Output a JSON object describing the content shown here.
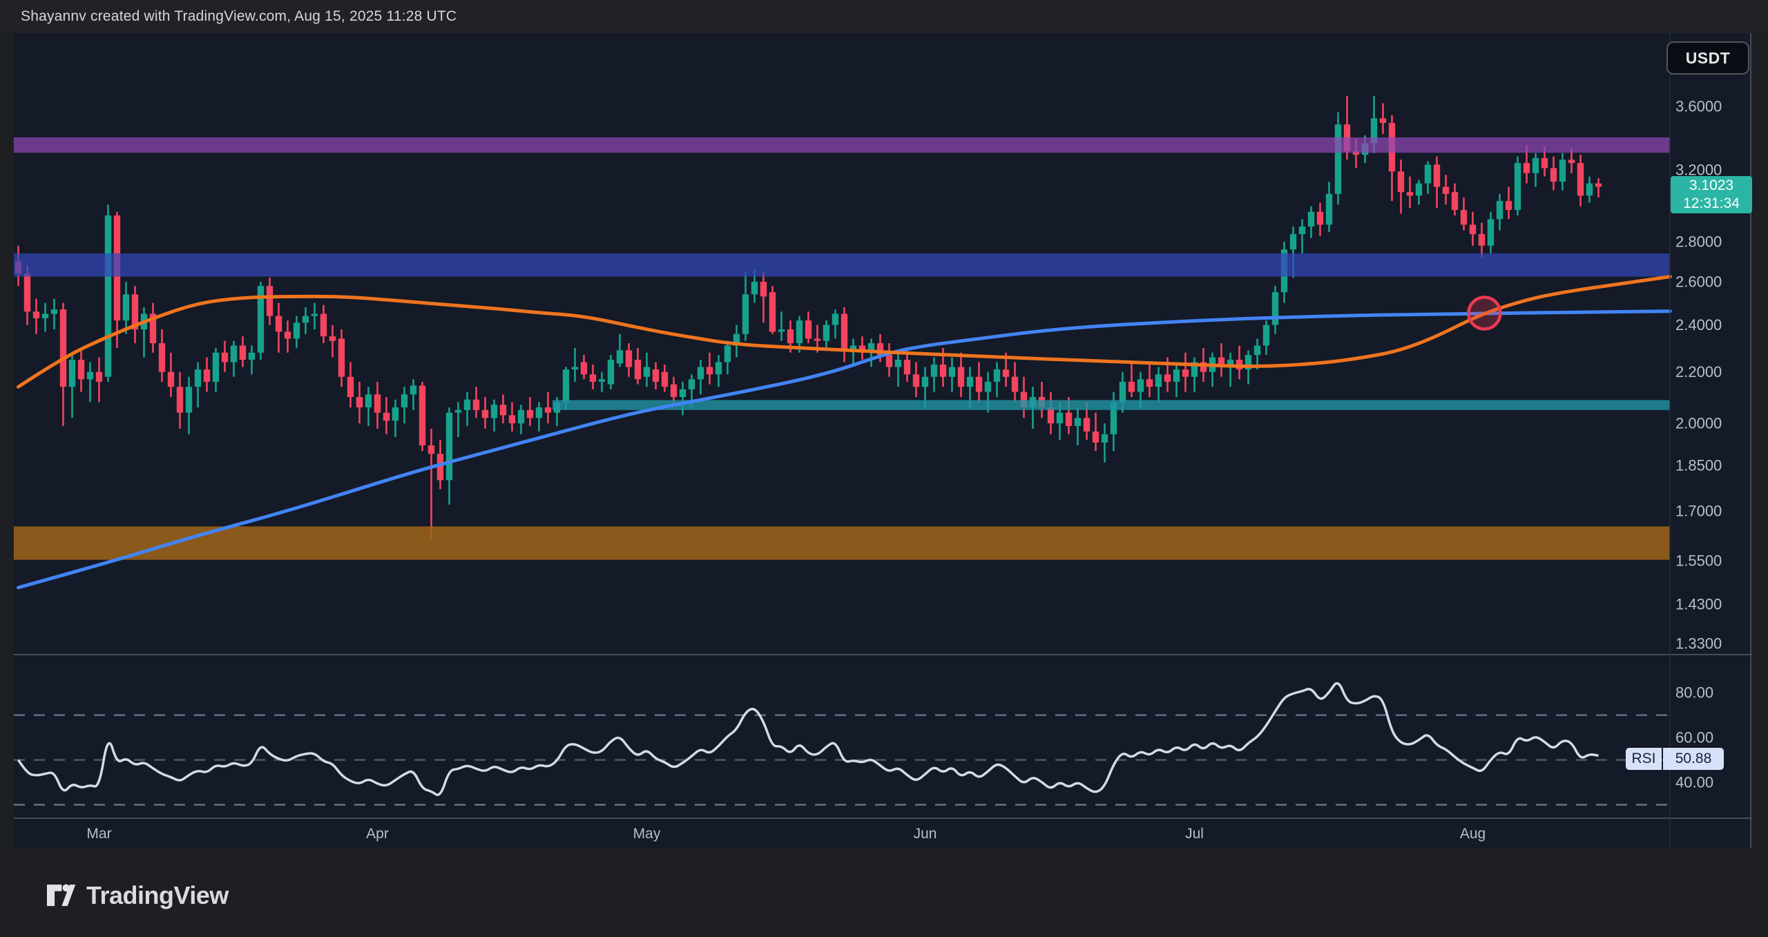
{
  "meta": {
    "attribution": "Shayannv created with TradingView.com, Aug 15, 2025 11:28 UTC"
  },
  "header": {
    "symbol_button": "USDT"
  },
  "watermark": {
    "brand": "TradingView"
  },
  "price_scale": {
    "current": {
      "price": "3.1023",
      "countdown": "12:31:34"
    }
  },
  "rsi": {
    "label": "RSI",
    "value": "50.88"
  },
  "colors": {
    "outer_bg": "#1e1f23",
    "topbar_bg": "#212226",
    "topbar_text": "#d5d7db",
    "chart_bg": "#141a27",
    "up": "#17a28c",
    "down": "#f4445f",
    "ma_fast": "#f0741f",
    "ma_slow": "#4284f5",
    "rsi_line": "#d2dbe8",
    "rsi_level": "#6b7284",
    "rsi_mid_level": "#525a6c",
    "tick_text": "#b8bfcc",
    "separator": "#464c59",
    "plot_border": "#272e3c",
    "price_badge_bg": "#2bb5a4",
    "rsi_badge_bg": "#d7e2f8",
    "rsi_badge_text": "#15223c",
    "usdt_border": "#53565e",
    "usdt_text": "#e4e6ea",
    "logo_color": "#d9dbdf",
    "zone_purple": "rgba(142,71,180,0.72)",
    "zone_blue": "rgba(51,70,186,0.72)",
    "zone_teal": "rgba(33,149,164,0.8)",
    "zone_brown": "rgba(159,101,27,0.85)",
    "annotation_red": "#ea3b52",
    "annotation_red_fill": "rgba(234,59,82,0.28)"
  },
  "chart_data": {
    "type": "candlestick",
    "symbol_quote": "USDT",
    "timeframe": "daily",
    "start_date": "2025-02-20",
    "end_date": "2025-08-15",
    "last_price": 3.1023,
    "y_scale": {
      "type": "log",
      "note": "price p maps to y = A - K*ln(p)"
    },
    "price_ticks": [
      {
        "v": 3.6,
        "label": "3.6000"
      },
      {
        "v": 3.2,
        "label": "3.2000"
      },
      {
        "v": 2.8,
        "label": "2.8000"
      },
      {
        "v": 2.6,
        "label": "2.6000"
      },
      {
        "v": 2.4,
        "label": "2.4000"
      },
      {
        "v": 2.2,
        "label": "2.2000"
      },
      {
        "v": 2.0,
        "label": "2.0000"
      },
      {
        "v": 1.85,
        "label": "1.8500"
      },
      {
        "v": 1.7,
        "label": "1.7000"
      },
      {
        "v": 1.55,
        "label": "1.5500"
      },
      {
        "v": 1.43,
        "label": "1.4300"
      },
      {
        "v": 1.33,
        "label": "1.3300"
      }
    ],
    "time_axis": [
      {
        "label": "Mar",
        "index": 9
      },
      {
        "label": "Apr",
        "index": 40
      },
      {
        "label": "May",
        "index": 70
      },
      {
        "label": "Jun",
        "index": 101
      },
      {
        "label": "Jul",
        "index": 131
      },
      {
        "label": "Aug",
        "index": 162
      }
    ],
    "candles": [
      [
        2.7,
        2.78,
        2.58,
        2.64
      ],
      [
        2.64,
        2.68,
        2.4,
        2.46
      ],
      [
        2.46,
        2.52,
        2.36,
        2.43
      ],
      [
        2.43,
        2.5,
        2.37,
        2.45
      ],
      [
        2.45,
        2.52,
        2.38,
        2.47
      ],
      [
        2.47,
        2.5,
        1.99,
        2.14
      ],
      [
        2.14,
        2.28,
        2.02,
        2.25
      ],
      [
        2.25,
        2.3,
        2.12,
        2.17
      ],
      [
        2.17,
        2.24,
        2.08,
        2.2
      ],
      [
        2.2,
        2.26,
        2.08,
        2.16
      ],
      [
        2.18,
        3.0,
        2.16,
        2.94
      ],
      [
        2.94,
        2.96,
        2.3,
        2.42
      ],
      [
        2.42,
        2.6,
        2.36,
        2.54
      ],
      [
        2.54,
        2.58,
        2.32,
        2.38
      ],
      [
        2.38,
        2.48,
        2.26,
        2.45
      ],
      [
        2.45,
        2.5,
        2.28,
        2.32
      ],
      [
        2.32,
        2.38,
        2.16,
        2.2
      ],
      [
        2.2,
        2.28,
        2.1,
        2.14
      ],
      [
        2.14,
        2.2,
        1.98,
        2.04
      ],
      [
        2.04,
        2.18,
        1.96,
        2.14
      ],
      [
        2.14,
        2.24,
        2.06,
        2.21
      ],
      [
        2.21,
        2.26,
        2.12,
        2.16
      ],
      [
        2.16,
        2.3,
        2.12,
        2.28
      ],
      [
        2.28,
        2.33,
        2.2,
        2.24
      ],
      [
        2.24,
        2.33,
        2.18,
        2.31
      ],
      [
        2.31,
        2.35,
        2.22,
        2.25
      ],
      [
        2.25,
        2.31,
        2.19,
        2.28
      ],
      [
        2.28,
        2.6,
        2.25,
        2.58
      ],
      [
        2.58,
        2.62,
        2.4,
        2.44
      ],
      [
        2.44,
        2.5,
        2.28,
        2.37
      ],
      [
        2.37,
        2.42,
        2.28,
        2.34
      ],
      [
        2.34,
        2.44,
        2.3,
        2.41
      ],
      [
        2.41,
        2.48,
        2.36,
        2.44
      ],
      [
        2.44,
        2.5,
        2.38,
        2.45
      ],
      [
        2.45,
        2.49,
        2.32,
        2.35
      ],
      [
        2.35,
        2.4,
        2.26,
        2.33
      ],
      [
        2.34,
        2.38,
        2.14,
        2.18
      ],
      [
        2.18,
        2.24,
        2.06,
        2.1
      ],
      [
        2.1,
        2.16,
        2.0,
        2.06
      ],
      [
        2.06,
        2.14,
        1.99,
        2.11
      ],
      [
        2.11,
        2.16,
        1.98,
        2.04
      ],
      [
        2.04,
        2.1,
        1.96,
        2.01
      ],
      [
        2.01,
        2.09,
        1.95,
        2.06
      ],
      [
        2.06,
        2.14,
        2.0,
        2.11
      ],
      [
        2.11,
        2.17,
        2.05,
        2.145
      ],
      [
        2.145,
        2.16,
        1.9,
        1.92
      ],
      [
        1.92,
        1.98,
        1.61,
        1.89
      ],
      [
        1.89,
        1.94,
        1.77,
        1.8
      ],
      [
        1.8,
        2.06,
        1.72,
        2.04
      ],
      [
        2.04,
        2.08,
        1.95,
        2.05
      ],
      [
        2.05,
        2.12,
        1.99,
        2.09
      ],
      [
        2.09,
        2.14,
        2.02,
        2.05
      ],
      [
        2.05,
        2.1,
        1.98,
        2.02
      ],
      [
        2.02,
        2.09,
        1.97,
        2.07
      ],
      [
        2.07,
        2.11,
        2.0,
        2.03
      ],
      [
        2.03,
        2.08,
        1.97,
        2.0
      ],
      [
        2.0,
        2.07,
        1.96,
        2.05
      ],
      [
        2.05,
        2.1,
        1.99,
        2.02
      ],
      [
        2.02,
        2.08,
        1.97,
        2.06
      ],
      [
        2.06,
        2.12,
        2.0,
        2.04
      ],
      [
        2.04,
        2.1,
        1.99,
        2.08
      ],
      [
        2.08,
        2.22,
        2.05,
        2.21
      ],
      [
        2.21,
        2.3,
        2.16,
        2.22
      ],
      [
        2.24,
        2.27,
        2.17,
        2.19
      ],
      [
        2.19,
        2.23,
        2.13,
        2.16
      ],
      [
        2.16,
        2.2,
        2.12,
        2.17
      ],
      [
        2.15,
        2.27,
        2.13,
        2.25
      ],
      [
        2.235,
        2.36,
        2.22,
        2.29
      ],
      [
        2.29,
        2.32,
        2.18,
        2.22
      ],
      [
        2.25,
        2.3,
        2.15,
        2.17
      ],
      [
        2.18,
        2.28,
        2.14,
        2.22
      ],
      [
        2.21,
        2.24,
        2.13,
        2.16
      ],
      [
        2.2,
        2.23,
        2.12,
        2.14
      ],
      [
        2.15,
        2.18,
        2.07,
        2.1
      ],
      [
        2.1,
        2.16,
        2.03,
        2.13
      ],
      [
        2.13,
        2.19,
        2.06,
        2.17
      ],
      [
        2.17,
        2.25,
        2.11,
        2.22
      ],
      [
        2.22,
        2.28,
        2.15,
        2.19
      ],
      [
        2.19,
        2.27,
        2.14,
        2.24
      ],
      [
        2.24,
        2.33,
        2.19,
        2.31
      ],
      [
        2.31,
        2.4,
        2.26,
        2.36
      ],
      [
        2.36,
        2.65,
        2.33,
        2.54
      ],
      [
        2.54,
        2.66,
        2.5,
        2.6
      ],
      [
        2.6,
        2.645,
        2.41,
        2.53
      ],
      [
        2.55,
        2.58,
        2.36,
        2.37
      ],
      [
        2.37,
        2.46,
        2.33,
        2.38
      ],
      [
        2.38,
        2.42,
        2.28,
        2.32
      ],
      [
        2.32,
        2.44,
        2.28,
        2.42
      ],
      [
        2.42,
        2.46,
        2.32,
        2.34
      ],
      [
        2.34,
        2.4,
        2.28,
        2.33
      ],
      [
        2.33,
        2.42,
        2.29,
        2.4
      ],
      [
        2.4,
        2.47,
        2.34,
        2.45
      ],
      [
        2.45,
        2.48,
        2.24,
        2.29
      ],
      [
        2.29,
        2.34,
        2.23,
        2.31
      ],
      [
        2.31,
        2.35,
        2.25,
        2.29
      ],
      [
        2.29,
        2.34,
        2.22,
        2.32
      ],
      [
        2.32,
        2.36,
        2.24,
        2.27
      ],
      [
        2.27,
        2.32,
        2.18,
        2.22
      ],
      [
        2.22,
        2.28,
        2.14,
        2.25
      ],
      [
        2.25,
        2.3,
        2.16,
        2.19
      ],
      [
        2.19,
        2.24,
        2.1,
        2.14
      ],
      [
        2.14,
        2.22,
        2.06,
        2.18
      ],
      [
        2.18,
        2.26,
        2.12,
        2.23
      ],
      [
        2.23,
        2.3,
        2.14,
        2.18
      ],
      [
        2.18,
        2.26,
        2.12,
        2.22
      ],
      [
        2.22,
        2.28,
        2.1,
        2.14
      ],
      [
        2.14,
        2.22,
        2.06,
        2.18
      ],
      [
        2.18,
        2.24,
        2.08,
        2.12
      ],
      [
        2.12,
        2.2,
        2.04,
        2.16
      ],
      [
        2.16,
        2.24,
        2.1,
        2.21
      ],
      [
        2.21,
        2.28,
        2.14,
        2.18
      ],
      [
        2.18,
        2.24,
        2.08,
        2.12
      ],
      [
        2.12,
        2.18,
        2.02,
        2.06
      ],
      [
        2.06,
        2.14,
        1.98,
        2.1
      ],
      [
        2.1,
        2.16,
        2.02,
        2.06
      ],
      [
        2.06,
        2.12,
        1.96,
        2.0
      ],
      [
        2.0,
        2.08,
        1.94,
        2.04
      ],
      [
        2.04,
        2.1,
        1.96,
        1.99
      ],
      [
        1.99,
        2.06,
        1.92,
        2.02
      ],
      [
        2.02,
        2.08,
        1.94,
        1.97
      ],
      [
        1.97,
        2.04,
        1.9,
        1.93
      ],
      [
        1.93,
        2.0,
        1.86,
        1.96
      ],
      [
        1.96,
        2.12,
        1.9,
        2.08
      ],
      [
        2.08,
        2.2,
        2.04,
        2.16
      ],
      [
        2.16,
        2.24,
        2.1,
        2.12
      ],
      [
        2.12,
        2.2,
        2.06,
        2.17
      ],
      [
        2.17,
        2.24,
        2.1,
        2.14
      ],
      [
        2.14,
        2.22,
        2.08,
        2.19
      ],
      [
        2.19,
        2.26,
        2.12,
        2.16
      ],
      [
        2.16,
        2.24,
        2.1,
        2.21
      ],
      [
        2.21,
        2.28,
        2.12,
        2.18
      ],
      [
        2.18,
        2.26,
        2.12,
        2.24
      ],
      [
        2.24,
        2.3,
        2.16,
        2.2
      ],
      [
        2.2,
        2.28,
        2.14,
        2.26
      ],
      [
        2.26,
        2.32,
        2.18,
        2.22
      ],
      [
        2.22,
        2.28,
        2.14,
        2.25
      ],
      [
        2.25,
        2.31,
        2.17,
        2.21
      ],
      [
        2.21,
        2.29,
        2.15,
        2.27
      ],
      [
        2.27,
        2.34,
        2.21,
        2.31
      ],
      [
        2.31,
        2.42,
        2.27,
        2.4
      ],
      [
        2.4,
        2.58,
        2.36,
        2.55
      ],
      [
        2.55,
        2.8,
        2.5,
        2.76
      ],
      [
        2.76,
        2.88,
        2.62,
        2.84
      ],
      [
        2.84,
        2.92,
        2.74,
        2.88
      ],
      [
        2.88,
        2.99,
        2.82,
        2.96
      ],
      [
        2.96,
        3.01,
        2.83,
        2.89
      ],
      [
        2.89,
        3.13,
        2.85,
        3.06
      ],
      [
        3.06,
        3.56,
        3.0,
        3.48
      ],
      [
        3.48,
        3.67,
        3.26,
        3.31
      ],
      [
        3.31,
        3.39,
        3.21,
        3.29
      ],
      [
        3.29,
        3.41,
        3.24,
        3.36
      ],
      [
        3.36,
        3.67,
        3.3,
        3.52
      ],
      [
        3.52,
        3.62,
        3.42,
        3.49
      ],
      [
        3.49,
        3.54,
        3.02,
        3.19
      ],
      [
        3.19,
        3.26,
        2.95,
        3.07
      ],
      [
        3.07,
        3.16,
        2.98,
        3.05
      ],
      [
        3.05,
        3.14,
        3.0,
        3.12
      ],
      [
        3.12,
        3.25,
        3.06,
        3.23
      ],
      [
        3.23,
        3.28,
        2.98,
        3.1
      ],
      [
        3.1,
        3.17,
        3.0,
        3.06
      ],
      [
        3.07,
        3.12,
        2.94,
        2.97
      ],
      [
        2.97,
        3.04,
        2.86,
        2.89
      ],
      [
        2.89,
        2.96,
        2.78,
        2.84
      ],
      [
        2.84,
        2.9,
        2.72,
        2.78
      ],
      [
        2.78,
        2.96,
        2.74,
        2.92
      ],
      [
        2.92,
        3.06,
        2.86,
        3.02
      ],
      [
        3.02,
        3.1,
        2.92,
        2.97
      ],
      [
        2.97,
        3.28,
        2.94,
        3.24
      ],
      [
        3.24,
        3.35,
        3.12,
        3.18
      ],
      [
        3.18,
        3.3,
        3.1,
        3.27
      ],
      [
        3.27,
        3.34,
        3.16,
        3.21
      ],
      [
        3.21,
        3.28,
        3.08,
        3.13
      ],
      [
        3.13,
        3.3,
        3.08,
        3.26
      ],
      [
        3.26,
        3.33,
        3.18,
        3.24
      ],
      [
        3.24,
        3.29,
        2.99,
        3.05
      ],
      [
        3.05,
        3.16,
        3.01,
        3.12
      ],
      [
        3.12,
        3.15,
        3.04,
        3.1
      ]
    ],
    "ma_fast_orange": [
      [
        0,
        2.14
      ],
      [
        5,
        2.26
      ],
      [
        10,
        2.35
      ],
      [
        15,
        2.43
      ],
      [
        20,
        2.5
      ],
      [
        25,
        2.525
      ],
      [
        30,
        2.53
      ],
      [
        36,
        2.53
      ],
      [
        41,
        2.515
      ],
      [
        48,
        2.49
      ],
      [
        53,
        2.475
      ],
      [
        58,
        2.455
      ],
      [
        63,
        2.44
      ],
      [
        70,
        2.38
      ],
      [
        75,
        2.345
      ],
      [
        80,
        2.315
      ],
      [
        87,
        2.3
      ],
      [
        95,
        2.285
      ],
      [
        101,
        2.275
      ],
      [
        110,
        2.26
      ],
      [
        120,
        2.245
      ],
      [
        131,
        2.23
      ],
      [
        138,
        2.22
      ],
      [
        145,
        2.235
      ],
      [
        150,
        2.26
      ],
      [
        154,
        2.29
      ],
      [
        158,
        2.35
      ],
      [
        163,
        2.45
      ],
      [
        168,
        2.515
      ],
      [
        172,
        2.55
      ],
      [
        176,
        2.575
      ],
      [
        184,
        2.625
      ]
    ],
    "ma_slow_blue": [
      [
        0,
        1.475
      ],
      [
        10,
        1.545
      ],
      [
        20,
        1.625
      ],
      [
        30,
        1.7
      ],
      [
        41,
        1.8
      ],
      [
        46,
        1.845
      ],
      [
        55,
        1.92
      ],
      [
        64,
        2.0
      ],
      [
        70,
        2.05
      ],
      [
        80,
        2.115
      ],
      [
        90,
        2.19
      ],
      [
        97,
        2.28
      ],
      [
        101,
        2.31
      ],
      [
        106,
        2.335
      ],
      [
        116,
        2.385
      ],
      [
        131,
        2.42
      ],
      [
        145,
        2.44
      ],
      [
        163,
        2.452
      ],
      [
        176,
        2.458
      ],
      [
        184,
        2.462
      ]
    ],
    "zones": [
      {
        "name": "resistance-zone-purple",
        "price_from": 3.302,
        "price_to": 3.398,
        "color_key": "zone_purple",
        "from_index": null
      },
      {
        "name": "resistance-zone-blue",
        "price_from": 2.625,
        "price_to": 2.74,
        "color_key": "zone_blue",
        "from_index": null
      },
      {
        "name": "support-zone-teal",
        "price_from": 2.05,
        "price_to": 2.088,
        "color_key": "zone_teal",
        "from_index": 60
      },
      {
        "name": "support-zone-brown",
        "price_from": 1.553,
        "price_to": 1.652,
        "color_key": "zone_brown",
        "from_index": null
      }
    ],
    "annotations": [
      {
        "type": "circle",
        "name": "ma-crossover-highlight",
        "index": 163.3,
        "price": 2.453,
        "radius": 23
      }
    ],
    "rsi_indicator": {
      "period": 14,
      "current_value": 50.88,
      "levels": [
        70,
        50,
        30
      ],
      "ticks": [
        {
          "v": 80,
          "label": "80.00"
        },
        {
          "v": 60,
          "label": "60.00"
        },
        {
          "v": 40,
          "label": "40.00"
        }
      ]
    }
  }
}
